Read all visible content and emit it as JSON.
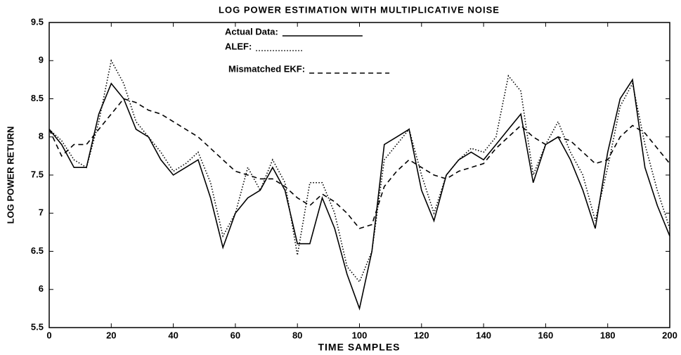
{
  "chart_data": {
    "type": "line",
    "title": "LOG POWER ESTIMATION WITH MULTIPLICATIVE NOISE",
    "xlabel": "TIME SAMPLES",
    "ylabel": "LOG POWER RETURN",
    "x": [
      0,
      4,
      8,
      12,
      16,
      20,
      24,
      28,
      32,
      36,
      40,
      44,
      48,
      52,
      56,
      60,
      64,
      68,
      72,
      76,
      80,
      84,
      88,
      92,
      96,
      100,
      104,
      108,
      112,
      116,
      120,
      124,
      128,
      132,
      136,
      140,
      144,
      148,
      152,
      156,
      160,
      164,
      168,
      172,
      176,
      180,
      184,
      188,
      192,
      196,
      200
    ],
    "series": [
      {
        "name": "Actual Data:",
        "color": "#000000",
        "style": "solid",
        "values": [
          8.1,
          7.9,
          7.6,
          7.6,
          8.3,
          8.7,
          8.5,
          8.1,
          8.0,
          7.7,
          7.5,
          7.6,
          7.7,
          7.2,
          6.55,
          7.0,
          7.2,
          7.3,
          7.6,
          7.3,
          6.6,
          6.6,
          7.2,
          6.8,
          6.2,
          5.75,
          6.5,
          7.9,
          8.0,
          8.1,
          7.3,
          6.9,
          7.5,
          7.7,
          7.8,
          7.7,
          7.9,
          8.1,
          8.3,
          7.4,
          7.9,
          8.0,
          7.7,
          7.3,
          6.8,
          7.8,
          8.5,
          8.75,
          7.6,
          7.1,
          6.7
        ]
      },
      {
        "name": "ALEF:",
        "color": "#000000",
        "style": "dotted",
        "values": [
          8.1,
          7.95,
          7.7,
          7.6,
          8.2,
          9.0,
          8.7,
          8.2,
          8.0,
          7.8,
          7.55,
          7.65,
          7.8,
          7.4,
          6.7,
          7.0,
          7.6,
          7.3,
          7.7,
          7.4,
          6.45,
          7.4,
          7.4,
          7.0,
          6.3,
          6.1,
          6.5,
          7.7,
          7.9,
          8.1,
          7.5,
          7.0,
          7.5,
          7.7,
          7.85,
          7.8,
          8.0,
          8.8,
          8.6,
          7.5,
          7.9,
          8.2,
          7.8,
          7.5,
          6.9,
          7.6,
          8.4,
          8.7,
          7.9,
          7.3,
          6.8
        ]
      },
      {
        "name": "Mismatched EKF:",
        "color": "#000000",
        "style": "dashed",
        "values": [
          8.1,
          7.75,
          7.9,
          7.9,
          8.1,
          8.3,
          8.5,
          8.45,
          8.35,
          8.3,
          8.2,
          8.1,
          8.0,
          7.85,
          7.7,
          7.55,
          7.5,
          7.45,
          7.45,
          7.35,
          7.2,
          7.1,
          7.25,
          7.15,
          7.0,
          6.8,
          6.85,
          7.35,
          7.55,
          7.7,
          7.6,
          7.5,
          7.45,
          7.55,
          7.6,
          7.65,
          7.85,
          8.0,
          8.15,
          8.0,
          7.9,
          8.0,
          7.95,
          7.8,
          7.65,
          7.7,
          8.0,
          8.15,
          8.05,
          7.85,
          7.65
        ]
      }
    ],
    "xlim": [
      0,
      200
    ],
    "xticks": [
      0,
      20,
      40,
      60,
      80,
      100,
      120,
      140,
      160,
      180,
      200
    ],
    "ylim": [
      5.5,
      9.5
    ],
    "yticks": [
      5.5,
      6,
      6.5,
      7,
      7.5,
      8,
      8.5,
      9,
      9.5
    ]
  }
}
